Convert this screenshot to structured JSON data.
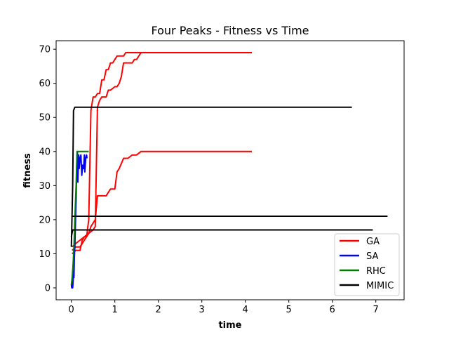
{
  "chart_data": {
    "type": "line",
    "title": "Four Peaks - Fitness vs Time",
    "xlabel": "time",
    "ylabel": "fitness",
    "xlim": [
      -0.35,
      7.65
    ],
    "ylim": [
      -3.5,
      72.5
    ],
    "xticks": [
      0,
      1,
      2,
      3,
      4,
      5,
      6,
      7
    ],
    "yticks": [
      0,
      10,
      20,
      30,
      40,
      50,
      60,
      70
    ],
    "grid": false,
    "legend_position": "lower-right",
    "legend": [
      {
        "name": "GA",
        "color": "#ff0000"
      },
      {
        "name": "SA",
        "color": "#0000ff"
      },
      {
        "name": "RHC",
        "color": "#008000"
      },
      {
        "name": "MIMIC",
        "color": "#000000"
      }
    ],
    "series": [
      {
        "name": "GA",
        "color": "#ff0000",
        "points": [
          [
            0.02,
            10
          ],
          [
            0.1,
            11
          ],
          [
            0.15,
            11
          ],
          [
            0.2,
            11
          ],
          [
            0.25,
            14
          ],
          [
            0.3,
            15
          ],
          [
            0.35,
            15
          ],
          [
            0.4,
            16
          ],
          [
            0.45,
            18
          ],
          [
            0.5,
            19
          ],
          [
            0.55,
            20
          ],
          [
            0.6,
            27
          ],
          [
            0.7,
            27
          ],
          [
            0.8,
            27
          ],
          [
            0.9,
            29
          ],
          [
            1.0,
            29
          ],
          [
            1.05,
            34
          ],
          [
            1.1,
            35
          ],
          [
            1.2,
            38
          ],
          [
            1.3,
            38
          ],
          [
            1.4,
            39
          ],
          [
            1.5,
            39
          ],
          [
            1.6,
            40
          ],
          [
            1.8,
            40
          ],
          [
            2.5,
            40
          ],
          [
            3.5,
            40
          ],
          [
            4.15,
            40
          ]
        ]
      },
      {
        "name": "GA",
        "color": "#ff0000",
        "points": [
          [
            0.02,
            11
          ],
          [
            0.1,
            12
          ],
          [
            0.2,
            12
          ],
          [
            0.3,
            14
          ],
          [
            0.35,
            15
          ],
          [
            0.4,
            20
          ],
          [
            0.45,
            52
          ],
          [
            0.5,
            56
          ],
          [
            0.55,
            56
          ],
          [
            0.6,
            57
          ],
          [
            0.65,
            57
          ],
          [
            0.7,
            61
          ],
          [
            0.75,
            61
          ],
          [
            0.8,
            64
          ],
          [
            0.85,
            64
          ],
          [
            0.9,
            66
          ],
          [
            0.95,
            66
          ],
          [
            1.0,
            67
          ],
          [
            1.05,
            68
          ],
          [
            1.1,
            68
          ],
          [
            1.2,
            68
          ],
          [
            1.25,
            69
          ],
          [
            1.3,
            69
          ],
          [
            1.5,
            69
          ],
          [
            2.0,
            69
          ],
          [
            3.0,
            69
          ],
          [
            4.15,
            69
          ]
        ]
      },
      {
        "name": "GA",
        "color": "#ff0000",
        "points": [
          [
            0.02,
            12
          ],
          [
            0.1,
            13
          ],
          [
            0.2,
            14
          ],
          [
            0.3,
            15
          ],
          [
            0.4,
            16
          ],
          [
            0.5,
            17
          ],
          [
            0.55,
            18
          ],
          [
            0.6,
            53
          ],
          [
            0.65,
            55
          ],
          [
            0.7,
            56
          ],
          [
            0.8,
            56
          ],
          [
            0.85,
            58
          ],
          [
            0.9,
            58
          ],
          [
            1.0,
            59
          ],
          [
            1.05,
            59
          ],
          [
            1.1,
            60
          ],
          [
            1.15,
            62
          ],
          [
            1.2,
            66
          ],
          [
            1.3,
            66
          ],
          [
            1.4,
            66
          ],
          [
            1.45,
            67
          ],
          [
            1.5,
            67
          ],
          [
            1.6,
            69
          ],
          [
            1.8,
            69
          ],
          [
            2.5,
            69
          ],
          [
            3.8,
            69
          ]
        ]
      },
      {
        "name": "SA",
        "color": "#0000ff",
        "points": [
          [
            0.0,
            1
          ],
          [
            0.01,
            0
          ],
          [
            0.02,
            3
          ],
          [
            0.03,
            0
          ],
          [
            0.04,
            2
          ],
          [
            0.05,
            5
          ],
          [
            0.06,
            3
          ],
          [
            0.07,
            9
          ],
          [
            0.08,
            12
          ],
          [
            0.09,
            17
          ],
          [
            0.1,
            22
          ],
          [
            0.11,
            26
          ],
          [
            0.12,
            33
          ],
          [
            0.13,
            39
          ],
          [
            0.14,
            40
          ],
          [
            0.15,
            31
          ],
          [
            0.16,
            36
          ],
          [
            0.17,
            39
          ],
          [
            0.18,
            35
          ],
          [
            0.2,
            38
          ],
          [
            0.22,
            39
          ],
          [
            0.24,
            33
          ],
          [
            0.26,
            36
          ],
          [
            0.28,
            35
          ],
          [
            0.3,
            39
          ],
          [
            0.31,
            34
          ],
          [
            0.33,
            38
          ],
          [
            0.35,
            39
          ],
          [
            0.36,
            38
          ]
        ]
      },
      {
        "name": "RHC",
        "color": "#008000",
        "points": [
          [
            0.0,
            1
          ],
          [
            0.02,
            3
          ],
          [
            0.04,
            7
          ],
          [
            0.06,
            12
          ],
          [
            0.08,
            20
          ],
          [
            0.1,
            27
          ],
          [
            0.11,
            30
          ],
          [
            0.12,
            35
          ],
          [
            0.13,
            40
          ],
          [
            0.2,
            40
          ],
          [
            0.3,
            40
          ],
          [
            0.4,
            40
          ]
        ]
      },
      {
        "name": "MIMIC",
        "color": "#000000",
        "points": [
          [
            0.0,
            12
          ],
          [
            0.03,
            30
          ],
          [
            0.05,
            52
          ],
          [
            0.08,
            53
          ],
          [
            0.2,
            53
          ],
          [
            3.0,
            53
          ],
          [
            6.45,
            53
          ]
        ]
      },
      {
        "name": "MIMIC",
        "color": "#000000",
        "points": [
          [
            0.0,
            21
          ],
          [
            0.05,
            21
          ],
          [
            1.0,
            21
          ],
          [
            4.0,
            21
          ],
          [
            7.27,
            21
          ]
        ]
      },
      {
        "name": "MIMIC",
        "color": "#000000",
        "points": [
          [
            0.0,
            15
          ],
          [
            0.03,
            17
          ],
          [
            0.06,
            17
          ],
          [
            1.0,
            17
          ],
          [
            4.0,
            17
          ],
          [
            6.93,
            17
          ]
        ]
      }
    ]
  }
}
